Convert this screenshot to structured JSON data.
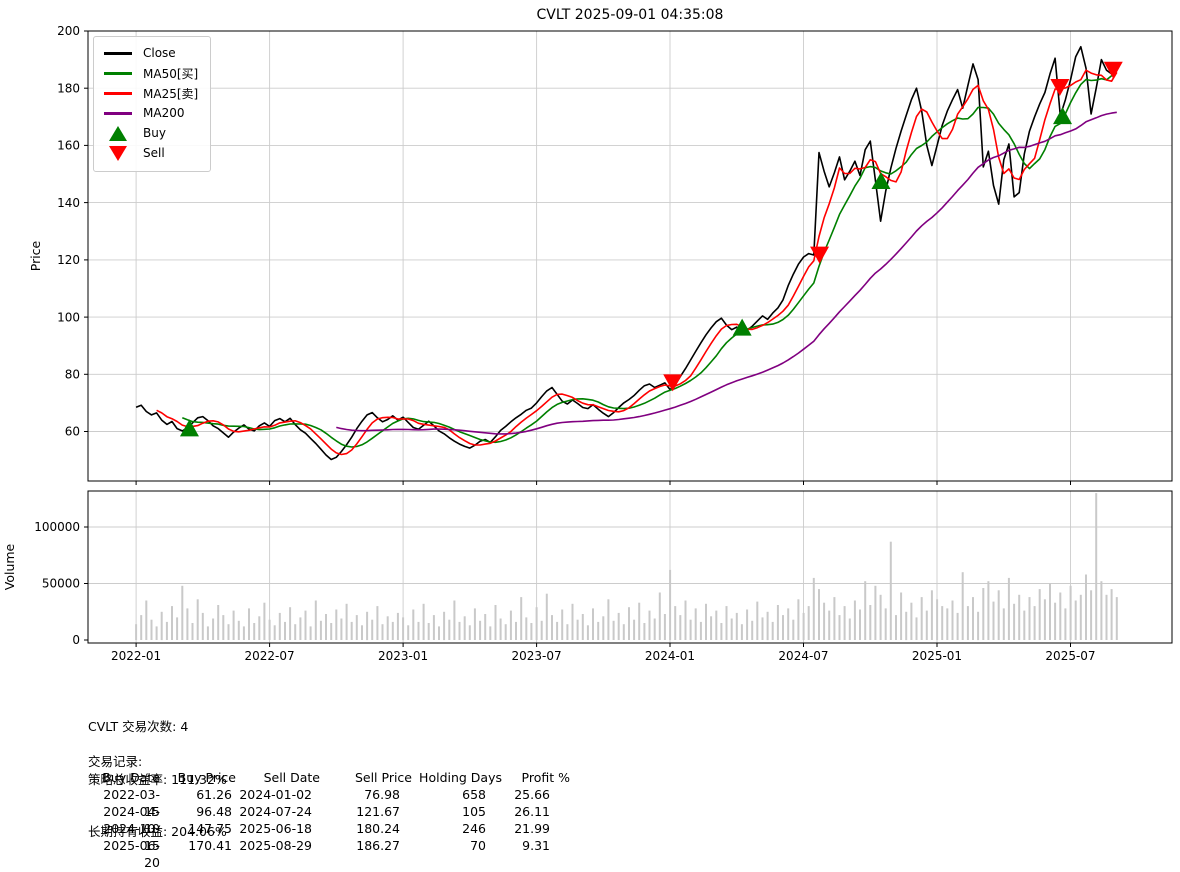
{
  "title": "CVLT 2025-09-01 04:35:08",
  "price_axis": {
    "label": "Price",
    "ticks": [
      60,
      80,
      100,
      120,
      140,
      160,
      180,
      200
    ]
  },
  "volume_axis": {
    "label": "Volume",
    "ticks": [
      0,
      50000,
      100000
    ],
    "tick_labels": [
      "0",
      "50000",
      "100000"
    ]
  },
  "x_axis": {
    "tick_years": [
      2022.0,
      2022.5,
      2023.0,
      2023.5,
      2024.0,
      2024.5,
      2025.0,
      2025.5
    ],
    "tick_labels": [
      "2022-01",
      "2022-07",
      "2023-01",
      "2023-07",
      "2024-01",
      "2024-07",
      "2025-01",
      "2025-07"
    ]
  },
  "legend": [
    {
      "label": "Close",
      "color": "#000000",
      "type": "line"
    },
    {
      "label": "MA50[买]",
      "color": "#008000",
      "type": "line"
    },
    {
      "label": "MA25[卖]",
      "color": "#ff0000",
      "type": "line"
    },
    {
      "label": "MA200",
      "color": "#800080",
      "type": "line"
    },
    {
      "label": "Buy",
      "color": "#008000",
      "type": "triangle-up"
    },
    {
      "label": "Sell",
      "color": "#ff0000",
      "type": "triangle-down"
    }
  ],
  "chart_data": {
    "type": "line+bar",
    "xlim": [
      2021.82,
      2025.88
    ],
    "price_ylim": [
      42.7,
      200
    ],
    "volume_ylim": [
      0,
      133000
    ],
    "grid_color": "#cccccc",
    "close": {
      "label": "Close",
      "color": "#000000",
      "start": 2022.0,
      "step": 0.019231,
      "values": [
        68.5,
        69.2,
        67.0,
        65.8,
        66.5,
        64.0,
        62.5,
        63.5,
        61.0,
        60.2,
        61.3,
        63.0,
        64.8,
        65.2,
        63.8,
        62.0,
        61.0,
        59.5,
        58.0,
        59.8,
        61.2,
        62.3,
        60.8,
        60.2,
        62.0,
        63.0,
        61.8,
        63.8,
        64.5,
        63.4,
        64.6,
        62.4,
        60.6,
        59.4,
        57.6,
        55.8,
        53.8,
        51.8,
        50.2,
        51.0,
        53.0,
        55.4,
        58.0,
        61.0,
        63.6,
        65.8,
        66.6,
        64.8,
        63.4,
        64.2,
        65.5,
        64.0,
        65.0,
        63.2,
        61.4,
        60.8,
        62.2,
        63.6,
        62.0,
        60.2,
        59.2,
        57.8,
        56.6,
        55.6,
        54.8,
        54.2,
        55.2,
        56.6,
        57.2,
        56.2,
        58.2,
        60.4,
        61.8,
        63.4,
        64.8,
        66.0,
        67.4,
        68.2,
        70.0,
        72.2,
        74.2,
        75.4,
        73.0,
        70.6,
        69.6,
        71.0,
        69.8,
        68.4,
        68.0,
        69.4,
        67.8,
        66.4,
        65.2,
        66.6,
        68.4,
        70.0,
        71.2,
        72.6,
        74.4,
        76.0,
        76.6,
        75.4,
        76.2,
        77.0,
        74.6,
        76.4,
        79.2,
        82.0,
        85.0,
        88.0,
        91.0,
        93.8,
        96.2,
        98.4,
        99.6,
        97.2,
        95.6,
        96.5,
        94.2,
        95.4,
        96.8,
        98.6,
        100.4,
        99.2,
        101.4,
        103.2,
        106.0,
        111.0,
        115.0,
        118.5,
        121.0,
        122.2,
        121.7,
        157.5,
        151.0,
        145.5,
        150.5,
        156.0,
        148.0,
        151.0,
        154.5,
        149.5,
        158.5,
        161.5,
        147.8,
        133.5,
        144.0,
        152.0,
        159.0,
        165.0,
        170.5,
        176.0,
        180.0,
        172.0,
        160.0,
        153.0,
        160.0,
        167.0,
        172.0,
        176.0,
        179.5,
        173.0,
        181.0,
        188.5,
        183.0,
        152.5,
        158.0,
        146.0,
        139.5,
        155.0,
        160.5,
        142.0,
        143.5,
        157.0,
        165.0,
        170.0,
        174.5,
        178.5,
        185.0,
        190.5,
        170.4,
        176.0,
        183.0,
        191.0,
        194.5,
        187.0,
        171.0,
        180.0,
        190.0,
        186.3,
        185.0,
        186.5
      ]
    },
    "ma_lines": [
      {
        "label": "MA50[买]",
        "window_days": 50,
        "window_points": 10,
        "color": "#008000"
      },
      {
        "label": "MA25[卖]",
        "window_days": 25,
        "window_points": 5,
        "color": "#ff0000"
      },
      {
        "label": "MA200",
        "window_days": 200,
        "window_points": 40,
        "color": "#800080"
      }
    ],
    "volume": {
      "label": "Volume",
      "color": "#c9c9c9",
      "values": [
        14000,
        22000,
        35000,
        18000,
        12000,
        25000,
        16000,
        30000,
        20000,
        48000,
        28000,
        15000,
        36000,
        24000,
        12000,
        19000,
        31000,
        22000,
        14000,
        26000,
        17000,
        12000,
        28000,
        15000,
        21000,
        33000,
        18000,
        13000,
        24000,
        16000,
        29000,
        14000,
        20000,
        26000,
        12000,
        35000,
        17000,
        23000,
        15000,
        27000,
        19000,
        32000,
        16000,
        22000,
        13000,
        25000,
        18000,
        30000,
        14000,
        21000,
        16000,
        24000,
        20000,
        13000,
        27000,
        16000,
        32000,
        15000,
        22000,
        12000,
        25000,
        18000,
        35000,
        16000,
        21000,
        13000,
        28000,
        17000,
        23000,
        12000,
        31000,
        19000,
        14000,
        26000,
        16000,
        38000,
        20000,
        15000,
        29000,
        17000,
        41000,
        22000,
        16000,
        27000,
        14000,
        32000,
        18000,
        23000,
        13000,
        28000,
        16000,
        21000,
        36000,
        17000,
        24000,
        14000,
        29000,
        18000,
        33000,
        15000,
        26000,
        19000,
        42000,
        23000,
        62000,
        30000,
        22000,
        35000,
        18000,
        28000,
        16000,
        32000,
        21000,
        26000,
        15000,
        30000,
        19000,
        24000,
        14000,
        27000,
        17000,
        34000,
        20000,
        25000,
        16000,
        31000,
        22000,
        28000,
        18000,
        36000,
        24000,
        30000,
        55000,
        45000,
        33000,
        26000,
        38000,
        22000,
        30000,
        19000,
        35000,
        27000,
        52000,
        31000,
        48000,
        40000,
        28000,
        87000,
        22000,
        42000,
        25000,
        33000,
        20000,
        38000,
        26000,
        44000,
        36000,
        30000,
        28000,
        35000,
        24000,
        60000,
        30000,
        38000,
        25000,
        46000,
        52000,
        34000,
        44000,
        28000,
        55000,
        32000,
        40000,
        26000,
        38000,
        30000,
        45000,
        36000,
        50000,
        33000,
        42000,
        28000,
        48000,
        35000,
        40000,
        58000,
        44000,
        130000,
        52000,
        40000,
        45000,
        38000
      ]
    },
    "markers": {
      "buy_color": "#008000",
      "sell_color": "#ff0000",
      "buys": [
        {
          "date": "2022-03-15",
          "price": 61.26,
          "year": 2022.2
        },
        {
          "date": "2024-04-10",
          "price": 96.48,
          "year": 2024.27
        },
        {
          "date": "2024-10-15",
          "price": 147.75,
          "year": 2024.79
        },
        {
          "date": "2025-06-20",
          "price": 170.41,
          "year": 2025.47
        }
      ],
      "sells": [
        {
          "date": "2024-01-02",
          "price": 76.98,
          "year": 2024.01
        },
        {
          "date": "2024-07-24",
          "price": 121.67,
          "year": 2024.56
        },
        {
          "date": "2025-06-18",
          "price": 180.24,
          "year": 2025.46
        },
        {
          "date": "2025-08-29",
          "price": 186.27,
          "year": 2025.66
        }
      ]
    }
  },
  "summary": {
    "trade_count_line": "CVLT 交易次数: 4",
    "strategy_return_line": "策略总收益率: 111.32%",
    "hold_return_line": "长期持有收益: 204.06%",
    "records_title": "交易记录:"
  },
  "trade_table": {
    "headers": [
      "Buy Date",
      "Buy Price",
      "Sell Date",
      "Sell Price",
      "Holding Days",
      "Profit %"
    ],
    "rows": [
      [
        "2022-03-15",
        "61.26",
        "2024-01-02",
        "76.98",
        "658",
        "25.66"
      ],
      [
        "2024-04-10",
        "96.48",
        "2024-07-24",
        "121.67",
        "105",
        "26.11"
      ],
      [
        "2024-10-15",
        "147.75",
        "2025-06-18",
        "180.24",
        "246",
        "21.99"
      ],
      [
        "2025-06-20",
        "170.41",
        "2025-08-29",
        "186.27",
        "70",
        "9.31"
      ]
    ]
  }
}
